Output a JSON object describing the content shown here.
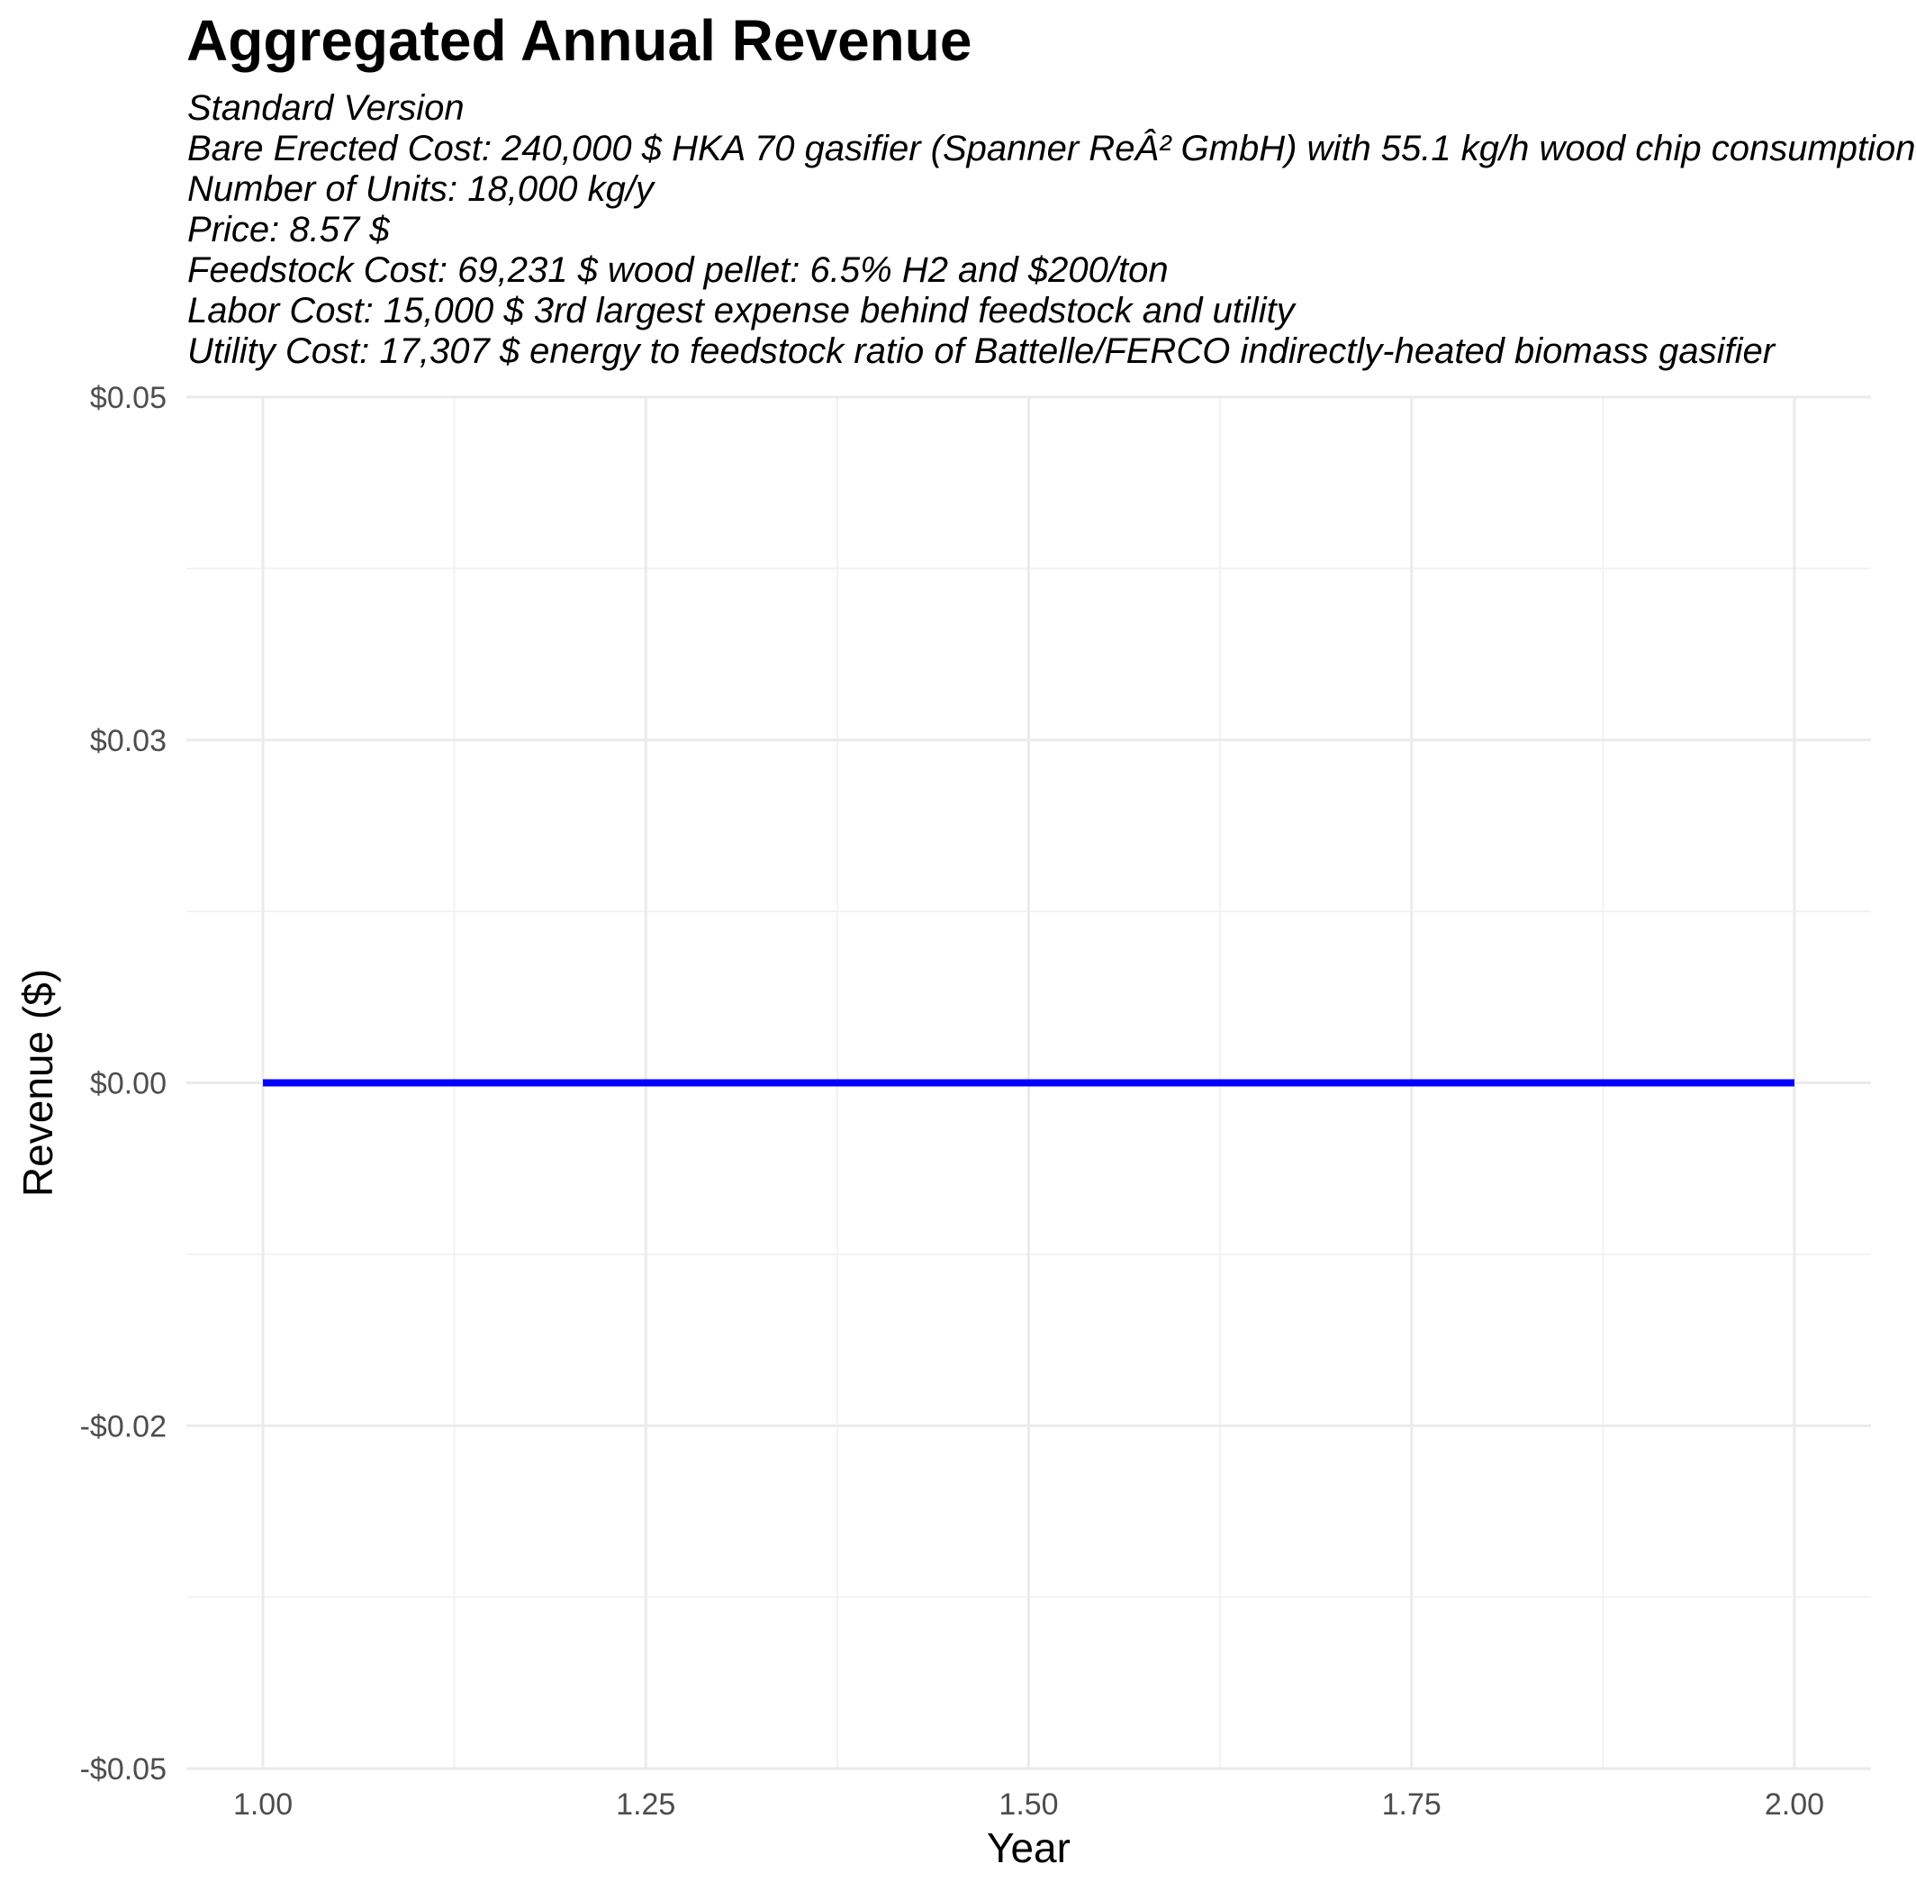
{
  "chart_data": {
    "type": "line",
    "title": "Aggregated Annual Revenue",
    "subtitle_lines": [
      "Standard Version",
      "Bare Erected Cost: 240,000 $ HKA 70 gasifier (Spanner ReÂ² GmbH) with 55.1 kg/h wood chip consumption",
      "Number of Units: 18,000 kg/y",
      "Price: 8.57 $",
      "Feedstock Cost: 69,231 $ wood pellet: 6.5% H2 and $200/ton",
      "Labor Cost: 15,000 $ 3rd largest expense behind feedstock and utility",
      "Utility Cost: 17,307 $ energy to feedstock ratio of Battelle/FERCO indirectly-heated biomass gasifier"
    ],
    "xlabel": "Year",
    "ylabel": "Revenue ($)",
    "xlim": [
      0.95,
      2.05
    ],
    "ylim": [
      -0.05,
      0.05
    ],
    "x_ticks": [
      1.0,
      1.25,
      1.5,
      1.75,
      2.0
    ],
    "x_tick_labels": [
      "1.00",
      "1.25",
      "1.50",
      "1.75",
      "2.00"
    ],
    "y_ticks": [
      -0.05,
      -0.025,
      0.0,
      0.025,
      0.05
    ],
    "y_tick_labels": [
      "-$0.05",
      "-$0.02",
      "$0.00",
      "$0.03",
      "$0.05"
    ],
    "grid": true,
    "legend": "none",
    "series": [
      {
        "x": [
          1,
          2
        ],
        "y": [
          0,
          0
        ],
        "color": "#0000ff"
      }
    ]
  },
  "colors": {
    "background": "#ffffff",
    "grid_major": "#ebebeb",
    "grid_minor": "#f3f3f3",
    "line": "#0000ff",
    "tick_text": "#4d4d4d"
  }
}
